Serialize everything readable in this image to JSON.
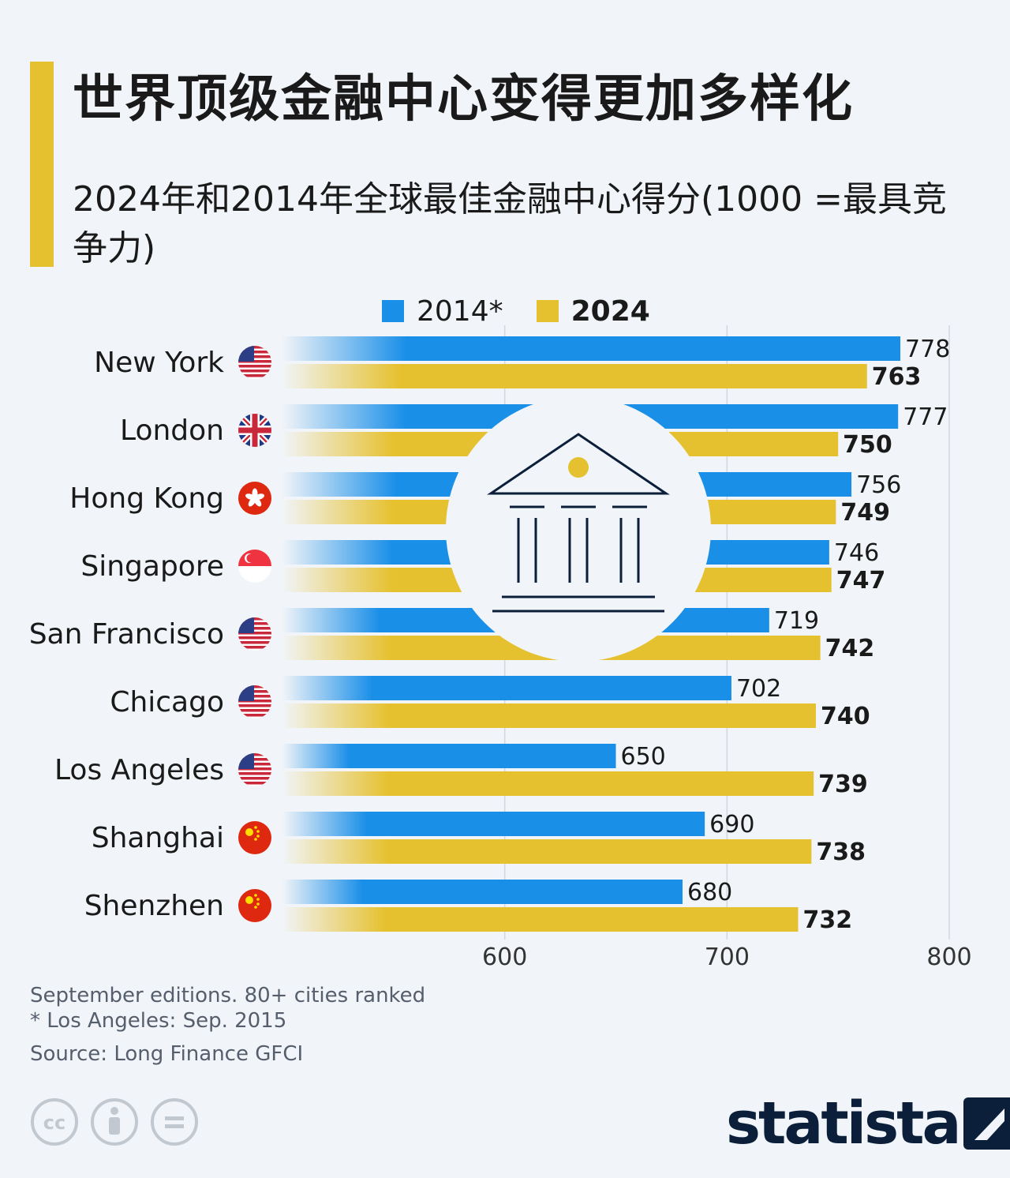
{
  "title": "世界顶级金融中心变得更加多样化",
  "subtitle": "2024年和2014年全球最佳金融中心得分(1000 =最具竞争力)",
  "colors": {
    "series_2014": "#1a8fe8",
    "series_2024": "#e6c12f",
    "accent": "#e6c12f",
    "brand": "#0b1f3a"
  },
  "legend": {
    "series_2014_label": "2014*",
    "series_2024_label": "2024"
  },
  "chart_data": {
    "type": "bar",
    "orientation": "horizontal",
    "categories": [
      "New York",
      "London",
      "Hong Kong",
      "Singapore",
      "San Francisco",
      "Chicago",
      "Los Angeles",
      "Shanghai",
      "Shenzhen"
    ],
    "flags": [
      "us-flag-icon",
      "uk-flag-icon",
      "hong-kong-flag-icon",
      "singapore-flag-icon",
      "us-flag-icon",
      "us-flag-icon",
      "us-flag-icon",
      "china-flag-icon",
      "china-flag-icon"
    ],
    "series": [
      {
        "name": "2014*",
        "values": [
          778,
          777,
          756,
          746,
          719,
          702,
          650,
          690,
          680
        ]
      },
      {
        "name": "2024",
        "values": [
          763,
          750,
          749,
          747,
          742,
          740,
          739,
          738,
          732
        ]
      }
    ],
    "x_ticks": [
      600,
      700,
      800
    ],
    "xlim": [
      500,
      800
    ],
    "grid": true,
    "legend_position": "top"
  },
  "notes": {
    "editions": "September editions. 80+ cities ranked",
    "footnote": "* Los Angeles: Sep. 2015",
    "source": "Source: Long Finance GFCI"
  },
  "brand": {
    "name": "statista"
  }
}
